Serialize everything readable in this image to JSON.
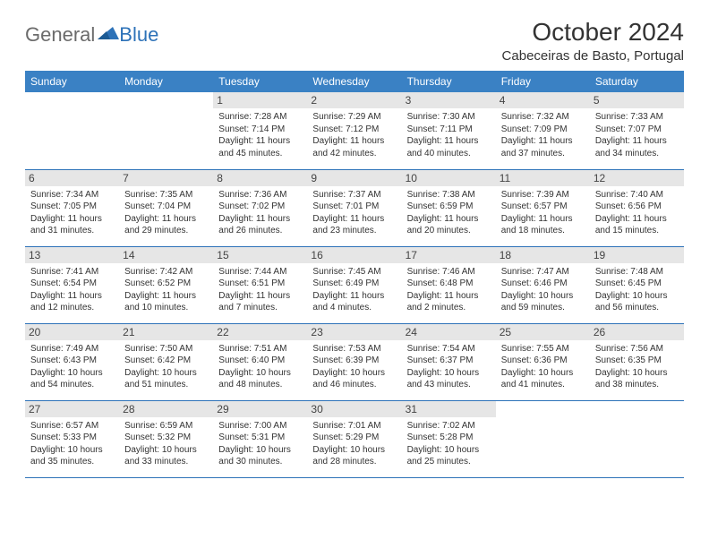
{
  "logo": {
    "general": "General",
    "blue": "Blue"
  },
  "title": "October 2024",
  "location": "Cabeceiras de Basto, Portugal",
  "colors": {
    "header_bg": "#3a81c4",
    "border": "#2d72b8",
    "daynum_bg": "#e6e6e6",
    "text": "#333333",
    "logo_gray": "#6b6b6b",
    "logo_blue": "#2d72b8"
  },
  "weekdays": [
    "Sunday",
    "Monday",
    "Tuesday",
    "Wednesday",
    "Thursday",
    "Friday",
    "Saturday"
  ],
  "weeks": [
    [
      null,
      null,
      {
        "n": "1",
        "sr": "Sunrise: 7:28 AM",
        "ss": "Sunset: 7:14 PM",
        "d1": "Daylight: 11 hours",
        "d2": "and 45 minutes."
      },
      {
        "n": "2",
        "sr": "Sunrise: 7:29 AM",
        "ss": "Sunset: 7:12 PM",
        "d1": "Daylight: 11 hours",
        "d2": "and 42 minutes."
      },
      {
        "n": "3",
        "sr": "Sunrise: 7:30 AM",
        "ss": "Sunset: 7:11 PM",
        "d1": "Daylight: 11 hours",
        "d2": "and 40 minutes."
      },
      {
        "n": "4",
        "sr": "Sunrise: 7:32 AM",
        "ss": "Sunset: 7:09 PM",
        "d1": "Daylight: 11 hours",
        "d2": "and 37 minutes."
      },
      {
        "n": "5",
        "sr": "Sunrise: 7:33 AM",
        "ss": "Sunset: 7:07 PM",
        "d1": "Daylight: 11 hours",
        "d2": "and 34 minutes."
      }
    ],
    [
      {
        "n": "6",
        "sr": "Sunrise: 7:34 AM",
        "ss": "Sunset: 7:05 PM",
        "d1": "Daylight: 11 hours",
        "d2": "and 31 minutes."
      },
      {
        "n": "7",
        "sr": "Sunrise: 7:35 AM",
        "ss": "Sunset: 7:04 PM",
        "d1": "Daylight: 11 hours",
        "d2": "and 29 minutes."
      },
      {
        "n": "8",
        "sr": "Sunrise: 7:36 AM",
        "ss": "Sunset: 7:02 PM",
        "d1": "Daylight: 11 hours",
        "d2": "and 26 minutes."
      },
      {
        "n": "9",
        "sr": "Sunrise: 7:37 AM",
        "ss": "Sunset: 7:01 PM",
        "d1": "Daylight: 11 hours",
        "d2": "and 23 minutes."
      },
      {
        "n": "10",
        "sr": "Sunrise: 7:38 AM",
        "ss": "Sunset: 6:59 PM",
        "d1": "Daylight: 11 hours",
        "d2": "and 20 minutes."
      },
      {
        "n": "11",
        "sr": "Sunrise: 7:39 AM",
        "ss": "Sunset: 6:57 PM",
        "d1": "Daylight: 11 hours",
        "d2": "and 18 minutes."
      },
      {
        "n": "12",
        "sr": "Sunrise: 7:40 AM",
        "ss": "Sunset: 6:56 PM",
        "d1": "Daylight: 11 hours",
        "d2": "and 15 minutes."
      }
    ],
    [
      {
        "n": "13",
        "sr": "Sunrise: 7:41 AM",
        "ss": "Sunset: 6:54 PM",
        "d1": "Daylight: 11 hours",
        "d2": "and 12 minutes."
      },
      {
        "n": "14",
        "sr": "Sunrise: 7:42 AM",
        "ss": "Sunset: 6:52 PM",
        "d1": "Daylight: 11 hours",
        "d2": "and 10 minutes."
      },
      {
        "n": "15",
        "sr": "Sunrise: 7:44 AM",
        "ss": "Sunset: 6:51 PM",
        "d1": "Daylight: 11 hours",
        "d2": "and 7 minutes."
      },
      {
        "n": "16",
        "sr": "Sunrise: 7:45 AM",
        "ss": "Sunset: 6:49 PM",
        "d1": "Daylight: 11 hours",
        "d2": "and 4 minutes."
      },
      {
        "n": "17",
        "sr": "Sunrise: 7:46 AM",
        "ss": "Sunset: 6:48 PM",
        "d1": "Daylight: 11 hours",
        "d2": "and 2 minutes."
      },
      {
        "n": "18",
        "sr": "Sunrise: 7:47 AM",
        "ss": "Sunset: 6:46 PM",
        "d1": "Daylight: 10 hours",
        "d2": "and 59 minutes."
      },
      {
        "n": "19",
        "sr": "Sunrise: 7:48 AM",
        "ss": "Sunset: 6:45 PM",
        "d1": "Daylight: 10 hours",
        "d2": "and 56 minutes."
      }
    ],
    [
      {
        "n": "20",
        "sr": "Sunrise: 7:49 AM",
        "ss": "Sunset: 6:43 PM",
        "d1": "Daylight: 10 hours",
        "d2": "and 54 minutes."
      },
      {
        "n": "21",
        "sr": "Sunrise: 7:50 AM",
        "ss": "Sunset: 6:42 PM",
        "d1": "Daylight: 10 hours",
        "d2": "and 51 minutes."
      },
      {
        "n": "22",
        "sr": "Sunrise: 7:51 AM",
        "ss": "Sunset: 6:40 PM",
        "d1": "Daylight: 10 hours",
        "d2": "and 48 minutes."
      },
      {
        "n": "23",
        "sr": "Sunrise: 7:53 AM",
        "ss": "Sunset: 6:39 PM",
        "d1": "Daylight: 10 hours",
        "d2": "and 46 minutes."
      },
      {
        "n": "24",
        "sr": "Sunrise: 7:54 AM",
        "ss": "Sunset: 6:37 PM",
        "d1": "Daylight: 10 hours",
        "d2": "and 43 minutes."
      },
      {
        "n": "25",
        "sr": "Sunrise: 7:55 AM",
        "ss": "Sunset: 6:36 PM",
        "d1": "Daylight: 10 hours",
        "d2": "and 41 minutes."
      },
      {
        "n": "26",
        "sr": "Sunrise: 7:56 AM",
        "ss": "Sunset: 6:35 PM",
        "d1": "Daylight: 10 hours",
        "d2": "and 38 minutes."
      }
    ],
    [
      {
        "n": "27",
        "sr": "Sunrise: 6:57 AM",
        "ss": "Sunset: 5:33 PM",
        "d1": "Daylight: 10 hours",
        "d2": "and 35 minutes."
      },
      {
        "n": "28",
        "sr": "Sunrise: 6:59 AM",
        "ss": "Sunset: 5:32 PM",
        "d1": "Daylight: 10 hours",
        "d2": "and 33 minutes."
      },
      {
        "n": "29",
        "sr": "Sunrise: 7:00 AM",
        "ss": "Sunset: 5:31 PM",
        "d1": "Daylight: 10 hours",
        "d2": "and 30 minutes."
      },
      {
        "n": "30",
        "sr": "Sunrise: 7:01 AM",
        "ss": "Sunset: 5:29 PM",
        "d1": "Daylight: 10 hours",
        "d2": "and 28 minutes."
      },
      {
        "n": "31",
        "sr": "Sunrise: 7:02 AM",
        "ss": "Sunset: 5:28 PM",
        "d1": "Daylight: 10 hours",
        "d2": "and 25 minutes."
      },
      null,
      null
    ]
  ]
}
